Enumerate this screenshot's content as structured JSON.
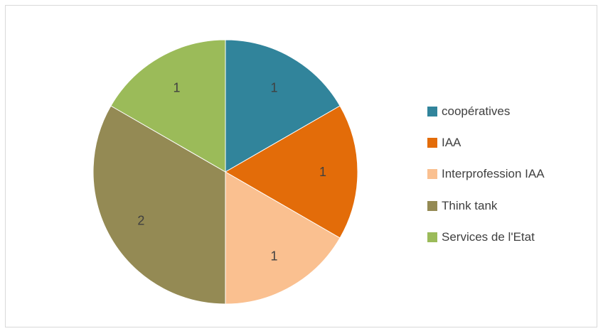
{
  "chart_data": {
    "type": "pie",
    "title": "",
    "categories": [
      "coopératives",
      "IAA",
      "Interprofession IAA",
      "Think tank",
      "Services de l'Etat"
    ],
    "values": [
      1,
      1,
      1,
      2,
      1
    ],
    "data_labels": [
      "1",
      "1",
      "1",
      "2",
      "1"
    ],
    "colors": [
      "#31849b",
      "#e36c09",
      "#fac090",
      "#948a54",
      "#9bbb59"
    ],
    "start_angle": "12 o'clock",
    "direction": "clockwise",
    "legend_position": "right"
  }
}
